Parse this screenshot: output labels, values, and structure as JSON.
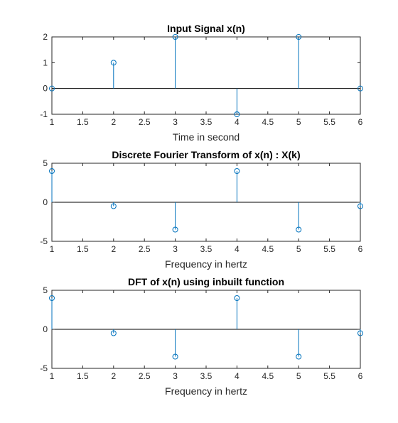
{
  "chart_data": [
    {
      "type": "stem",
      "title": "Input Signal x(n)",
      "xlabel": "Time in second",
      "ylabel": "",
      "xlim": [
        1,
        6
      ],
      "ylim": [
        -1,
        2
      ],
      "xticks": [
        "1",
        "1.5",
        "2",
        "2.5",
        "3",
        "3.5",
        "4",
        "4.5",
        "5",
        "5.5",
        "6"
      ],
      "yticks": [
        "-1",
        "0",
        "1",
        "2"
      ],
      "x": [
        1,
        2,
        3,
        4,
        5,
        6
      ],
      "values": [
        0,
        1,
        2,
        -1,
        2,
        0
      ],
      "grid": false,
      "color": "#0072BD"
    },
    {
      "type": "stem",
      "title": "Discrete Fourier Transform of x(n) : X(k)",
      "xlabel": "Frequency in hertz",
      "ylabel": "",
      "xlim": [
        1,
        6
      ],
      "ylim": [
        -5,
        5
      ],
      "xticks": [
        "1",
        "1.5",
        "2",
        "2.5",
        "3",
        "3.5",
        "4",
        "4.5",
        "5",
        "5.5",
        "6"
      ],
      "yticks": [
        "-5",
        "0",
        "5"
      ],
      "x": [
        1,
        2,
        3,
        4,
        5,
        6
      ],
      "values": [
        4,
        -0.5,
        -3.5,
        4,
        -3.5,
        -0.5
      ],
      "grid": false,
      "color": "#0072BD"
    },
    {
      "type": "stem",
      "title": "DFT of x(n) using inbuilt function",
      "xlabel": "Frequency in hertz",
      "ylabel": "",
      "xlim": [
        1,
        6
      ],
      "ylim": [
        -5,
        5
      ],
      "xticks": [
        "1",
        "1.5",
        "2",
        "2.5",
        "3",
        "3.5",
        "4",
        "4.5",
        "5",
        "5.5",
        "6"
      ],
      "yticks": [
        "-5",
        "0",
        "5"
      ],
      "x": [
        1,
        2,
        3,
        4,
        5,
        6
      ],
      "values": [
        4,
        -0.5,
        -3.5,
        4,
        -3.5,
        -0.5
      ],
      "grid": false,
      "color": "#0072BD"
    }
  ]
}
